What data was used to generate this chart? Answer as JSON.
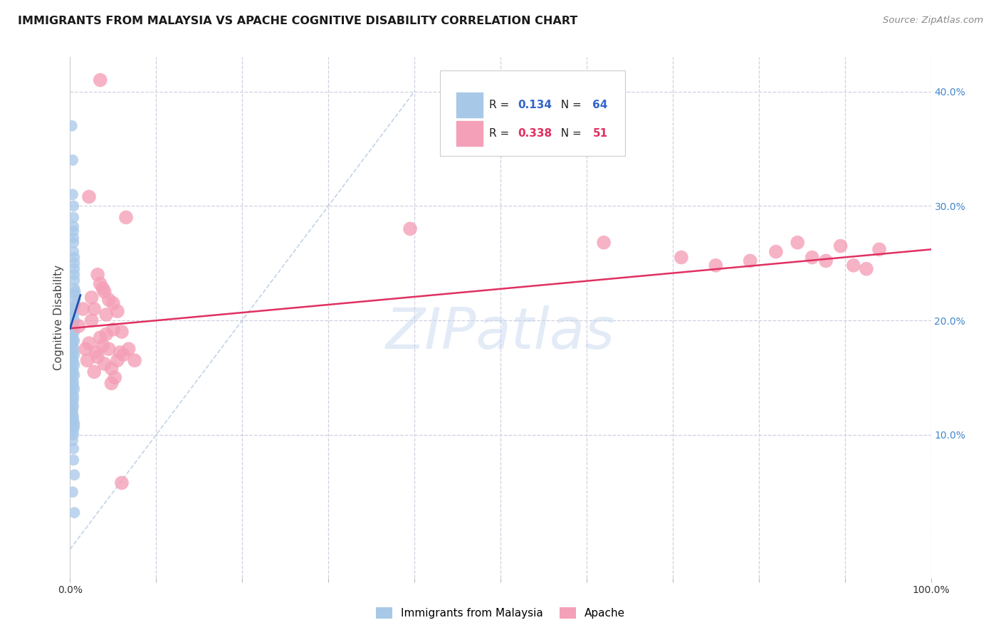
{
  "title": "IMMIGRANTS FROM MALAYSIA VS APACHE COGNITIVE DISABILITY CORRELATION CHART",
  "source": "Source: ZipAtlas.com",
  "ylabel": "Cognitive Disability",
  "xlim": [
    0.0,
    1.0
  ],
  "ylim": [
    -0.025,
    0.43
  ],
  "yticks": [
    0.0,
    0.1,
    0.2,
    0.3,
    0.4
  ],
  "ytick_labels": [
    "",
    "10.0%",
    "20.0%",
    "30.0%",
    "40.0%"
  ],
  "legend_label1": "Immigrants from Malaysia",
  "legend_label2": "Apache",
  "R1": "0.134",
  "N1": "64",
  "R2": "0.338",
  "N2": "51",
  "color1": "#a8c8e8",
  "color2": "#f4a0b8",
  "line1_color": "#2050b0",
  "line2_color": "#e03060",
  "diag_color": "#b8cce4",
  "watermark_color": "#c8d8f0",
  "background_color": "#ffffff",
  "grid_color": "#d0d0e0",
  "blue_x": [
    0.002,
    0.003,
    0.003,
    0.004,
    0.004,
    0.004,
    0.004,
    0.004,
    0.004,
    0.004,
    0.005,
    0.005,
    0.005,
    0.005,
    0.005,
    0.005,
    0.006,
    0.006,
    0.006,
    0.006,
    0.003,
    0.004,
    0.004,
    0.005,
    0.003,
    0.004,
    0.004,
    0.005,
    0.003,
    0.004,
    0.005,
    0.003,
    0.004,
    0.004,
    0.005,
    0.003,
    0.004,
    0.005,
    0.003,
    0.004,
    0.005,
    0.003,
    0.004,
    0.004,
    0.005,
    0.003,
    0.004,
    0.004,
    0.003,
    0.004,
    0.003,
    0.003,
    0.004,
    0.004,
    0.005,
    0.005,
    0.004,
    0.004,
    0.003,
    0.004,
    0.004,
    0.005,
    0.003,
    0.005
  ],
  "blue_y": [
    0.37,
    0.34,
    0.31,
    0.3,
    0.29,
    0.282,
    0.278,
    0.272,
    0.268,
    0.26,
    0.255,
    0.25,
    0.245,
    0.24,
    0.235,
    0.228,
    0.225,
    0.222,
    0.218,
    0.213,
    0.21,
    0.207,
    0.204,
    0.2,
    0.198,
    0.196,
    0.193,
    0.19,
    0.187,
    0.184,
    0.182,
    0.179,
    0.176,
    0.173,
    0.17,
    0.167,
    0.164,
    0.161,
    0.158,
    0.155,
    0.152,
    0.149,
    0.146,
    0.143,
    0.14,
    0.137,
    0.134,
    0.131,
    0.128,
    0.125,
    0.122,
    0.119,
    0.116,
    0.113,
    0.11,
    0.107,
    0.104,
    0.1,
    0.095,
    0.088,
    0.078,
    0.065,
    0.05,
    0.032
  ],
  "pink_x": [
    0.01,
    0.015,
    0.018,
    0.02,
    0.022,
    0.025,
    0.028,
    0.03,
    0.032,
    0.035,
    0.038,
    0.04,
    0.042,
    0.045,
    0.048,
    0.05,
    0.052,
    0.055,
    0.058,
    0.06,
    0.025,
    0.035,
    0.04,
    0.05,
    0.028,
    0.038,
    0.045,
    0.055,
    0.032,
    0.042,
    0.048,
    0.062,
    0.068,
    0.075,
    0.022,
    0.065,
    0.395,
    0.035,
    0.62,
    0.71,
    0.75,
    0.79,
    0.82,
    0.845,
    0.862,
    0.878,
    0.895,
    0.91,
    0.925,
    0.94,
    0.06
  ],
  "pink_y": [
    0.195,
    0.21,
    0.175,
    0.165,
    0.18,
    0.2,
    0.155,
    0.172,
    0.168,
    0.185,
    0.178,
    0.162,
    0.188,
    0.175,
    0.158,
    0.192,
    0.15,
    0.165,
    0.172,
    0.19,
    0.22,
    0.232,
    0.225,
    0.215,
    0.21,
    0.228,
    0.218,
    0.208,
    0.24,
    0.205,
    0.145,
    0.17,
    0.175,
    0.165,
    0.308,
    0.29,
    0.28,
    0.41,
    0.268,
    0.255,
    0.248,
    0.252,
    0.26,
    0.268,
    0.255,
    0.252,
    0.265,
    0.248,
    0.245,
    0.262,
    0.058
  ],
  "blue_line_x": [
    0.0,
    0.012
  ],
  "blue_line_y": [
    0.193,
    0.222
  ],
  "pink_line_x": [
    0.0,
    1.0
  ],
  "pink_line_y": [
    0.193,
    0.262
  ]
}
